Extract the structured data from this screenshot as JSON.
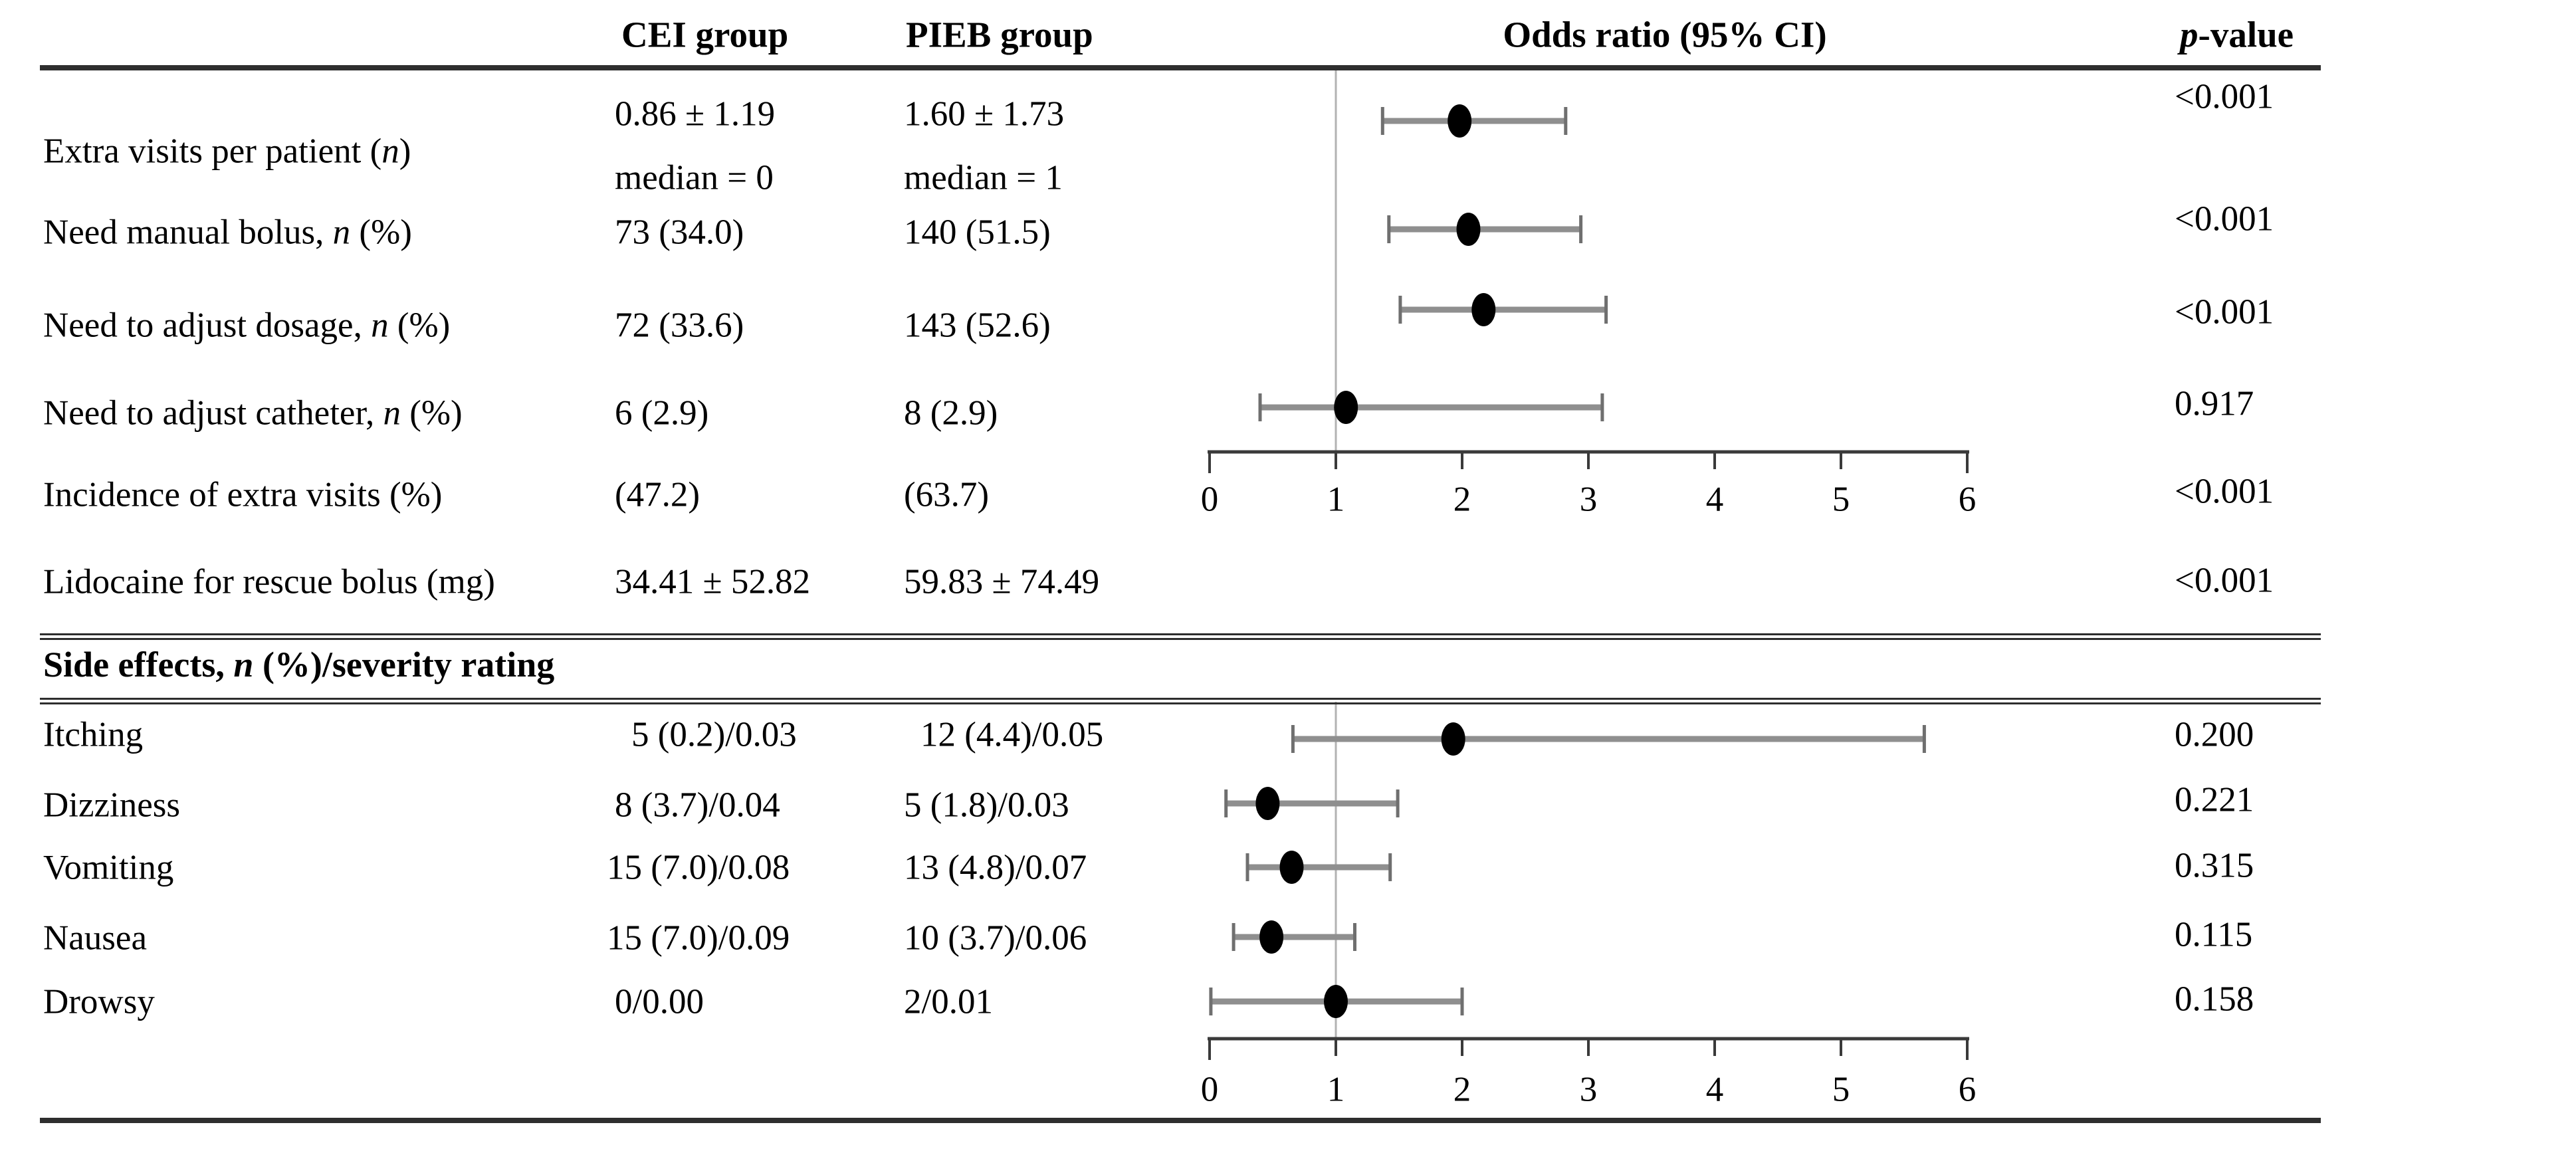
{
  "figure": {
    "headers": {
      "cei": "CEI group",
      "pieb": "PIEB group",
      "odds": "Odds ratio (95% CI)",
      "p_segments": [
        {
          "t": "p",
          "i": 1
        },
        {
          "t": "-value"
        }
      ]
    },
    "rows": [
      {
        "id": "extra",
        "label": [
          {
            "t": "Extra visits per patient ("
          },
          {
            "t": "n",
            "i": 1
          },
          {
            "t": ")"
          }
        ],
        "cei": [
          "0.86 ± 1.19",
          "median = 0"
        ],
        "pieb": [
          "1.60 ± 1.73",
          "median = 1"
        ],
        "p": "<0.001"
      },
      {
        "id": "bolus",
        "label": [
          {
            "t": "Need manual bolus, "
          },
          {
            "t": "n",
            "i": 1
          },
          {
            "t": " (%)"
          }
        ],
        "cei": [
          "73 (34.0)"
        ],
        "pieb": [
          "140 (51.5)"
        ],
        "p": "<0.001"
      },
      {
        "id": "dosage",
        "label": [
          {
            "t": "Need to adjust dosage, "
          },
          {
            "t": "n",
            "i": 1
          },
          {
            "t": " (%)"
          }
        ],
        "cei": [
          "72 (33.6)"
        ],
        "pieb": [
          "143 (52.6)"
        ],
        "p": "<0.001"
      },
      {
        "id": "catheter",
        "label": [
          {
            "t": "Need to adjust catheter, "
          },
          {
            "t": "n",
            "i": 1
          },
          {
            "t": " (%)"
          }
        ],
        "cei": [
          "6 (2.9)"
        ],
        "pieb": [
          "8 (2.9)"
        ],
        "p": "0.917"
      },
      {
        "id": "incidence",
        "label": [
          {
            "t": "Incidence of extra visits (%)"
          }
        ],
        "cei": [
          "(47.2)"
        ],
        "pieb": [
          "(63.7)"
        ],
        "p": "<0.001"
      },
      {
        "id": "lidocaine",
        "label": [
          {
            "t": "Lidocaine for rescue bolus (mg)"
          }
        ],
        "cei": [
          "34.41 ± 52.82"
        ],
        "pieb": [
          "59.83 ± 74.49"
        ],
        "p": "<0.001"
      },
      {
        "id": "section",
        "section": true,
        "label": [
          {
            "t": "Side effects, "
          },
          {
            "t": "n",
            "i": 1
          },
          {
            "t": " (%)/severity rating"
          }
        ]
      },
      {
        "id": "itching",
        "label": [
          {
            "t": "Itching"
          }
        ],
        "cei": [
          "5 (0.2)/0.03"
        ],
        "pieb": [
          "12 (4.4)/0.05"
        ],
        "p": "0.200"
      },
      {
        "id": "dizziness",
        "label": [
          {
            "t": "Dizziness"
          }
        ],
        "cei": [
          "8 (3.7)/0.04"
        ],
        "pieb": [
          "5 (1.8)/0.03"
        ],
        "p": "0.221"
      },
      {
        "id": "vomiting",
        "label": [
          {
            "t": "Vomiting"
          }
        ],
        "cei": [
          "15 (7.0)/0.08"
        ],
        "pieb": [
          "13 (4.8)/0.07"
        ],
        "p": "0.315"
      },
      {
        "id": "nausea",
        "label": [
          {
            "t": "Nausea"
          }
        ],
        "cei": [
          "15 (7.0)/0.09"
        ],
        "pieb": [
          "10 (3.7)/0.06"
        ],
        "p": "0.115"
      },
      {
        "id": "drowsy",
        "label": [
          {
            "t": "Drowsy"
          }
        ],
        "cei": [
          "0/0.00"
        ],
        "pieb": [
          "2/0.01"
        ],
        "p": "0.158"
      }
    ]
  },
  "chart_data": {
    "type": "forest",
    "title": "Odds ratio (95% CI)",
    "x_axis": {
      "range": [
        0,
        6
      ],
      "ticks": [
        0,
        1,
        2,
        3,
        4,
        5,
        6
      ],
      "reference_line": 1
    },
    "panels": [
      {
        "name": "extra-visits-panel",
        "rows": [
          {
            "id": "extra",
            "label": "Extra visits per patient (n)",
            "or": 1.98,
            "ci": [
              1.37,
              2.82
            ],
            "p": "<0.001"
          },
          {
            "id": "bolus",
            "label": "Need manual bolus, n (%)",
            "or": 2.05,
            "ci": [
              1.42,
              2.94
            ],
            "p": "<0.001"
          },
          {
            "id": "dosage",
            "label": "Need to adjust dosage, n (%)",
            "or": 2.17,
            "ci": [
              1.51,
              3.14
            ],
            "p": "<0.001"
          },
          {
            "id": "catheter",
            "label": "Need to adjust catheter, n (%)",
            "or": 1.08,
            "ci": [
              0.4,
              3.11
            ],
            "p": "0.917"
          }
        ]
      },
      {
        "name": "side-effects-panel",
        "rows": [
          {
            "id": "itching",
            "label": "Itching",
            "or": 1.93,
            "ci": [
              0.66,
              5.66
            ],
            "p": "0.200"
          },
          {
            "id": "dizziness",
            "label": "Dizziness",
            "or": 0.46,
            "ci": [
              0.13,
              1.49
            ],
            "p": "0.221"
          },
          {
            "id": "vomiting",
            "label": "Vomiting",
            "or": 0.65,
            "ci": [
              0.3,
              1.43
            ],
            "p": "0.315"
          },
          {
            "id": "nausea",
            "label": "Nausea",
            "or": 0.49,
            "ci": [
              0.19,
              1.15
            ],
            "p": "0.115"
          },
          {
            "id": "drowsy",
            "label": "Drowsy",
            "or": 1.0,
            "ci": [
              0.01,
              2.0
            ],
            "p": "0.158"
          }
        ]
      }
    ]
  },
  "colors": {
    "background": "#ffffff",
    "text": "#000000",
    "rule": "#2e2e2e",
    "axis": "#3a3a3a",
    "ci_line": "#8f8f8f",
    "ci_cap": "#6f6f6f",
    "point": "#000000",
    "reference_line": "#b3b3b3"
  }
}
